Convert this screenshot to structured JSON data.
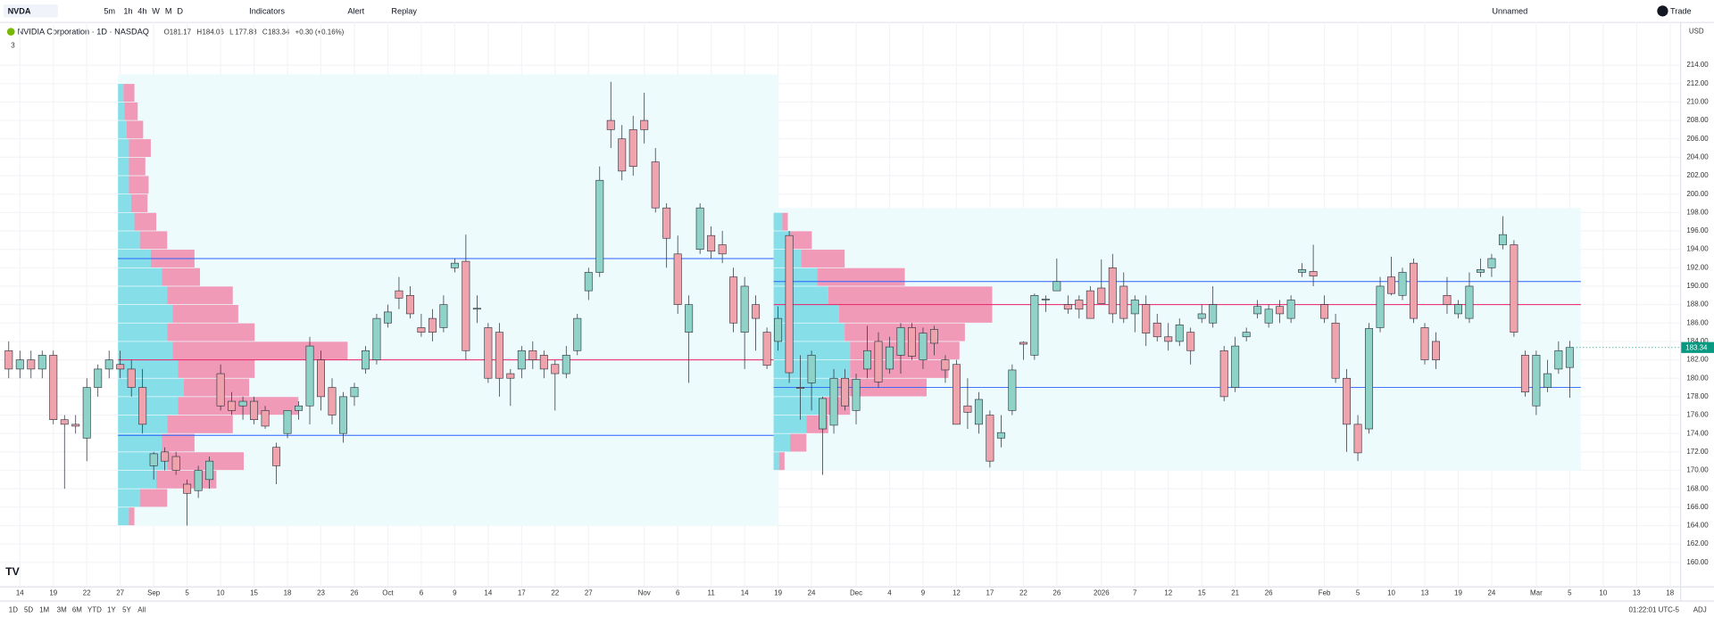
{
  "toolbar": {
    "symbol": "NVDA",
    "intervals": [
      "5m",
      "1h",
      "4h",
      "W",
      "M",
      "D"
    ],
    "indicators": "Indicators",
    "alert": "Alert",
    "replay": "Replay",
    "layout": "Unnamed",
    "trade": "Trade"
  },
  "legend": {
    "name": "NVIDIA Corporation · 1D · NASDAQ",
    "letters": [
      "O",
      "H",
      "L",
      "C"
    ],
    "change": "+0.30 (+0.16%)",
    "indicator_count": "3"
  },
  "footer": {
    "ranges": [
      "1D",
      "5D",
      "1M",
      "3M",
      "6M",
      "YTD",
      "1Y",
      "5Y",
      "All"
    ],
    "time": "01:22:01 UTC-5",
    "adj": "ADJ"
  },
  "chart_data": {
    "type": "candlestick",
    "currency": "USD",
    "categories": [
      null,
      "14",
      null,
      null,
      "19",
      null,
      null,
      "22",
      null,
      null,
      "27",
      null,
      null,
      "Sep",
      null,
      null,
      "5",
      null,
      null,
      "10",
      null,
      null,
      "15",
      null,
      null,
      "18",
      null,
      null,
      "23",
      null,
      null,
      "26",
      null,
      null,
      "Oct",
      null,
      null,
      "6",
      null,
      null,
      "9",
      null,
      null,
      "14",
      null,
      null,
      "17",
      null,
      null,
      "22",
      null,
      null,
      "27",
      null,
      null,
      null,
      null,
      "Nov",
      null,
      null,
      "6",
      null,
      null,
      "11",
      null,
      null,
      "14",
      null,
      null,
      "19",
      null,
      null,
      "24",
      null,
      null,
      null,
      "Dec",
      null,
      null,
      "4",
      null,
      null,
      "9",
      null,
      null,
      "12",
      null,
      null,
      "17",
      null,
      null,
      "22",
      null,
      null,
      "26",
      null,
      null,
      null,
      "2026",
      null,
      null,
      "7",
      null,
      null,
      "12",
      null,
      null,
      "15",
      null,
      null,
      "21",
      null,
      null,
      "26",
      null,
      null,
      null,
      null,
      "Feb",
      null,
      null,
      "5",
      null,
      null,
      "10",
      null,
      null,
      "13",
      null,
      null,
      "19",
      null,
      null,
      "24",
      null,
      null,
      null,
      "Mar",
      null,
      null,
      "5",
      null,
      null,
      "10",
      null,
      null,
      "13",
      null,
      null,
      "18"
    ],
    "open": [
      183,
      181,
      182,
      181,
      182.5,
      175.5,
      175,
      173.5,
      179,
      181,
      181.5,
      181,
      179,
      170.5,
      172,
      171.5,
      168.5,
      167.8,
      169,
      180.5,
      177.5,
      177,
      177.5,
      176.5,
      172.5,
      174,
      176.5,
      177,
      182,
      179,
      174,
      178,
      181,
      182,
      186,
      189.5,
      189,
      185.5,
      186.5,
      185.5,
      192,
      192.7,
      187.5,
      185.5,
      185,
      180.5,
      181,
      183,
      182.5,
      181.5,
      180.5,
      183,
      189.5,
      191.5,
      208,
      206,
      207,
      208,
      203.5,
      198.5,
      193.5,
      185,
      194,
      195.5,
      194.5,
      191,
      185,
      188,
      185,
      184,
      195.5,
      179,
      179.5,
      174.5,
      174.9,
      180,
      176.5,
      181,
      184,
      181,
      182.5,
      185.5,
      182,
      185.3,
      182,
      181.5,
      177,
      175,
      176,
      173.5,
      176.5,
      183.9,
      182.5,
      188.5,
      189.5,
      188,
      188.5,
      189.5,
      189.8,
      192,
      190,
      187,
      188,
      186,
      184.5,
      184,
      185,
      186.5,
      186,
      183,
      179,
      184.5,
      187,
      186,
      187.8,
      186.5,
      191.5,
      191.6,
      188,
      186,
      180,
      175,
      174.5,
      185.5,
      191,
      189,
      192.5,
      185.5,
      184,
      189,
      187,
      186.5,
      191.5,
      192,
      194.5,
      194.5,
      182.5,
      177,
      179,
      181,
      181.17,
      null,
      null,
      null,
      null,
      null,
      null,
      null,
      null,
      null
    ],
    "high": [
      184,
      183,
      183,
      183,
      183,
      176,
      176,
      180,
      181.5,
      183,
      183,
      182,
      181,
      172,
      172.5,
      172,
      169,
      170.5,
      171.5,
      181.5,
      178.5,
      178,
      178,
      177,
      173,
      176.5,
      177.5,
      184.5,
      183,
      180,
      178.5,
      179.5,
      183.5,
      187,
      188,
      191,
      190,
      187,
      187.5,
      189,
      193,
      195.6,
      189,
      186,
      186,
      181,
      183.5,
      184,
      183,
      182,
      183.5,
      187,
      192,
      203,
      212.2,
      207.5,
      208.5,
      211,
      205,
      199,
      195.5,
      189,
      199,
      196.5,
      196,
      192,
      191,
      189,
      185.5,
      187.8,
      196,
      182.5,
      183,
      178,
      181,
      181,
      180.5,
      185.7,
      185,
      184.5,
      186,
      186,
      185.5,
      185.7,
      182.5,
      182,
      180,
      178.5,
      176.5,
      176,
      181.5,
      184,
      189.2,
      189,
      193,
      189,
      189,
      190,
      192.9,
      193.5,
      191.5,
      189,
      189,
      187,
      186,
      186.5,
      185.5,
      188,
      190,
      183.5,
      184.5,
      185.5,
      188.5,
      188,
      188.5,
      189,
      192.5,
      194.5,
      189,
      187,
      181,
      176,
      186,
      191,
      193.2,
      192,
      193,
      186,
      185,
      191,
      188.5,
      191.5,
      193,
      193.5,
      197.6,
      195,
      183,
      183,
      182,
      184,
      184.06,
      null,
      null,
      null,
      null,
      null,
      null,
      null,
      null,
      null
    ],
    "low": [
      180,
      180,
      180,
      180,
      175,
      168,
      174,
      171,
      178,
      180,
      180,
      178,
      174,
      169,
      170,
      169.5,
      164,
      167,
      168,
      176.5,
      176,
      175.5,
      175,
      174.5,
      168.5,
      173.5,
      175.5,
      175,
      176.5,
      175,
      173,
      177,
      180.5,
      181.5,
      185.5,
      187.5,
      186.5,
      184.5,
      184,
      185,
      191.5,
      182,
      186,
      179.5,
      178,
      177,
      180,
      181,
      180,
      176.5,
      180,
      182.5,
      188.5,
      191,
      205,
      201.5,
      202,
      205.5,
      198,
      192,
      187,
      179.5,
      193.5,
      193,
      192.5,
      185,
      181,
      183,
      181,
      183,
      179.5,
      175.5,
      176.5,
      169.5,
      174,
      176.5,
      175,
      180,
      179,
      180.5,
      180.5,
      182,
      181,
      182.5,
      179.5,
      175,
      174.5,
      174,
      170.3,
      172.5,
      176,
      182,
      182,
      187.2,
      189.5,
      187,
      186.5,
      186.5,
      188.1,
      186,
      186,
      185,
      183.5,
      184,
      183,
      183.5,
      181.5,
      186,
      185.5,
      177.5,
      178.5,
      184,
      186.5,
      185.5,
      186,
      186,
      191,
      190,
      186,
      179.5,
      172,
      171,
      174,
      185,
      189,
      188.5,
      186,
      181.5,
      181,
      187,
      186.5,
      186,
      191,
      191,
      194,
      184.5,
      178,
      176,
      178.5,
      180.5,
      177.88,
      null,
      null,
      null,
      null,
      null,
      null,
      null,
      null,
      null
    ],
    "close": [
      181,
      182,
      181,
      182.5,
      175.5,
      175,
      174.8,
      179,
      181,
      182,
      181,
      179,
      175,
      171.8,
      171,
      170,
      167.5,
      170,
      171,
      177,
      176.5,
      177.5,
      175.5,
      174.8,
      170.5,
      176.5,
      177,
      183.5,
      178,
      176,
      178,
      179,
      183,
      186.5,
      187.2,
      188.7,
      187,
      185,
      185,
      188,
      192.5,
      183,
      187.6,
      180,
      180,
      180,
      183,
      182,
      181,
      180.5,
      182.5,
      186.5,
      191.5,
      201.5,
      207,
      202.5,
      203,
      207,
      198.5,
      195.2,
      188,
      188,
      198.5,
      193.8,
      193.5,
      186,
      190,
      186.5,
      181.4,
      186.5,
      180.6,
      178.9,
      182.5,
      177.8,
      180,
      177,
      179.9,
      183,
      179.6,
      183.4,
      185.5,
      182.4,
      184.9,
      183.8,
      180.9,
      175,
      176.3,
      177.7,
      171,
      174.1,
      180.9,
      183.7,
      189,
      188.6,
      190.5,
      187.5,
      187.5,
      186.5,
      188.1,
      187,
      186.5,
      188.5,
      184.9,
      184.5,
      184,
      185.8,
      183,
      187,
      188,
      178,
      183.5,
      185,
      187.8,
      187.5,
      187,
      188.5,
      191.8,
      191.1,
      186.5,
      180,
      175,
      171.9,
      185.4,
      190,
      189.2,
      191.5,
      186.5,
      182,
      182,
      188,
      188,
      190,
      191.8,
      193,
      195.6,
      185,
      178.5,
      182.5,
      180.5,
      183,
      183.34,
      null,
      null,
      null,
      null,
      null,
      null,
      null,
      null,
      null
    ],
    "up_color": "#8fd3c8",
    "down_color": "#eea3ad",
    "ylim": [
      157.4,
      218.7
    ],
    "yticks": [
      {
        "value": 160,
        "label": "160.00"
      },
      {
        "value": 162,
        "label": "162.00"
      },
      {
        "value": 164,
        "label": "164.00"
      },
      {
        "value": 166,
        "label": "166.00"
      },
      {
        "value": 168,
        "label": "168.00"
      },
      {
        "value": 170,
        "label": "170.00"
      },
      {
        "value": 172,
        "label": "172.00"
      },
      {
        "value": 174,
        "label": "174.00"
      },
      {
        "value": 176,
        "label": "176.00"
      },
      {
        "value": 178,
        "label": "178.00"
      },
      {
        "value": 180,
        "label": "180.00"
      },
      {
        "value": 182,
        "label": "182.00"
      },
      {
        "value": 184,
        "label": "184.00"
      },
      {
        "value": 186,
        "label": "186.00"
      },
      {
        "value": 188,
        "label": "188.00"
      },
      {
        "value": 190,
        "label": "190.00"
      },
      {
        "value": 192,
        "label": "192.00"
      },
      {
        "value": 194,
        "label": "194.00"
      },
      {
        "value": 196,
        "label": "196.00"
      },
      {
        "value": 198,
        "label": "198.00"
      },
      {
        "value": 200,
        "label": "200.00"
      },
      {
        "value": 202,
        "label": "202.00"
      },
      {
        "value": 204,
        "label": "204.00"
      },
      {
        "value": 206,
        "label": "206.00"
      },
      {
        "value": 208,
        "label": "208.00"
      },
      {
        "value": 210,
        "label": "210.00"
      },
      {
        "value": 212,
        "label": "212.00"
      },
      {
        "value": 214,
        "label": "214.00"
      }
    ],
    "grid": true,
    "profiles": [
      {
        "start": 9.8,
        "end": 69,
        "price_range": [
          164,
          213
        ],
        "prices": [
          165,
          167,
          169,
          171,
          173,
          175,
          177,
          179,
          181,
          183,
          185,
          187,
          189,
          191,
          193,
          195,
          197,
          199,
          201,
          203,
          205,
          207,
          209,
          211
        ],
        "up": [
          10,
          20,
          35,
          45,
          40,
          45,
          55,
          60,
          55,
          50,
          45,
          50,
          45,
          40,
          30,
          20,
          15,
          12,
          10,
          10,
          10,
          8,
          6,
          5
        ],
        "down": [
          5,
          25,
          55,
          70,
          30,
          60,
          110,
          60,
          70,
          160,
          80,
          60,
          60,
          35,
          40,
          25,
          20,
          15,
          18,
          15,
          20,
          15,
          12,
          10
        ],
        "levels": [
          {
            "value": 193,
            "color": "#2962ff"
          },
          {
            "value": 182,
            "color": "#e91e63"
          },
          {
            "value": 173.8,
            "color": "#2962ff"
          }
        ]
      },
      {
        "start": 68.6,
        "end": 141,
        "price_range": [
          170,
          198.5
        ],
        "prices": [
          171,
          173,
          175,
          177,
          179,
          181,
          183,
          185,
          187,
          189,
          191,
          193,
          195,
          197
        ],
        "up": [
          5,
          15,
          30,
          45,
          60,
          70,
          70,
          65,
          60,
          50,
          40,
          25,
          15,
          8
        ],
        "down": [
          5,
          15,
          20,
          25,
          80,
          90,
          100,
          110,
          140,
          150,
          80,
          40,
          20,
          5
        ],
        "levels": [
          {
            "value": 190.5,
            "color": "#2962ff"
          },
          {
            "value": 188,
            "color": "#e91e63"
          },
          {
            "value": 179,
            "color": "#2962ff"
          }
        ]
      }
    ],
    "up_volume_color": "#63d4e2",
    "down_volume_color": "#f27aa0",
    "profile_bg": "#eefbfd"
  }
}
